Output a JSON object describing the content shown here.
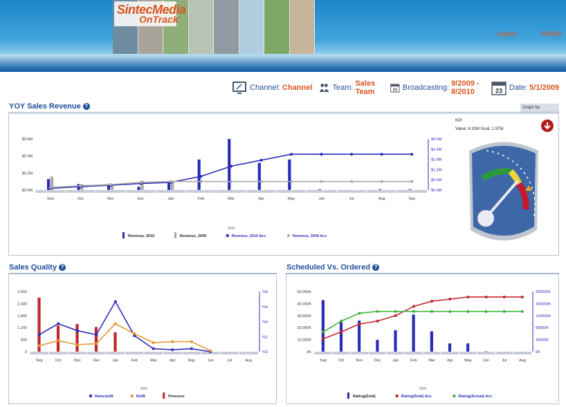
{
  "header": {
    "logo_line1": "SintecMedia",
    "logo_line2": "OnTrack",
    "logout_label": "Logout",
    "modify_label": "Modify"
  },
  "context": {
    "channel_label": "Channel:",
    "channel_value": "Channel",
    "team_label": "Team:",
    "team_value": "Sales Team",
    "broadcasting_label": "Broadcasting:",
    "broadcasting_value": "9/2009 - 8/2010",
    "date_label": "Date:",
    "date_value": "5/1/2009",
    "calendar_day": "23"
  },
  "yoy": {
    "title": "YOY Sales Revenue",
    "graph_by_label": "Graph by:",
    "kpi_label": "KPI",
    "kpi_value_text": "Value: 6.32M Goal: 1.97M"
  },
  "quality": {
    "title": "Sales Quality"
  },
  "scheduled": {
    "title": "Scheduled Vs. Ordered"
  },
  "colors": {
    "accent": "#d9541e",
    "navy": "#1f4f9a",
    "series_blue": "#2b2bb8",
    "series_gray": "#a8a8a8",
    "series_red": "#c0272d",
    "series_green": "#3fb23a",
    "series_orange": "#e0962f"
  },
  "chart_data": [
    {
      "type": "bar",
      "categories": [
        "Sep",
        "Oct",
        "Nov",
        "Dec",
        "Jan",
        "Feb",
        "Mar",
        "Apr",
        "May",
        "Jun",
        "Jul",
        "Aug",
        "Sep"
      ],
      "left_ticks": [
        "$0.6M",
        "$0.4M",
        "$0.2M",
        "$0.0M"
      ],
      "right_ticks": [
        "$3.0M",
        "$2.4M",
        "$1.8M",
        "$1.2M",
        "$0.6M",
        "$0.0M"
      ],
      "ylim_left": [
        0,
        0.6
      ],
      "ylim_right": [
        0,
        3.0
      ],
      "series": [
        {
          "name": "Revenue, 2010",
          "kind": "bar",
          "axis": "left",
          "values": [
            0.13,
            0.07,
            0.07,
            0.04,
            0.09,
            0.36,
            0.6,
            0.32,
            0.36,
            0.01,
            0.0,
            0.01,
            0.01
          ]
        },
        {
          "name": "Revenue, 2009",
          "kind": "bar",
          "axis": "left",
          "values": [
            0.16,
            0.07,
            0.07,
            0.11,
            0.09,
            0.0,
            0.0,
            0.0,
            0.0,
            0.0,
            0.0,
            0.0,
            0.0
          ]
        },
        {
          "name": "Revenue, 2010 Acc",
          "kind": "line",
          "axis": "right",
          "values": [
            0.1,
            0.2,
            0.28,
            0.38,
            0.45,
            0.8,
            1.4,
            1.75,
            2.1,
            2.1,
            2.1,
            2.1,
            2.1
          ]
        },
        {
          "name": "Revenue, 2009 Acc",
          "kind": "line",
          "axis": "right",
          "values": [
            0.15,
            0.25,
            0.32,
            0.45,
            0.5,
            0.5,
            0.5,
            0.5,
            0.5,
            0.5,
            0.5,
            0.5,
            0.5
          ]
        }
      ]
    },
    {
      "type": "line",
      "categories": [
        "Sep",
        "Oct",
        "Nov",
        "Dec",
        "Jan",
        "Feb",
        "Mar",
        "Apr",
        "May",
        "Jun",
        "Jul",
        "Aug"
      ],
      "left_ticks": [
        "3,000",
        "2,400",
        "1,800",
        "1,200",
        "600",
        "0"
      ],
      "right_ticks": [
        "%8",
        "%6",
        "%4",
        "%2",
        "%0"
      ],
      "ylim_left": [
        0,
        3000
      ],
      "ylim_right": [
        0,
        8
      ],
      "series": [
        {
          "name": "Ratecard$",
          "kind": "line",
          "axis": "left",
          "values": [
            850,
            1400,
            1050,
            850,
            2500,
            800,
            150,
            100,
            150,
            0,
            null,
            null
          ]
        },
        {
          "name": "Sell$",
          "kind": "line",
          "axis": "left",
          "values": [
            300,
            550,
            350,
            400,
            1400,
            900,
            450,
            500,
            500,
            50,
            null,
            null
          ]
        },
        {
          "name": "Pressure",
          "kind": "bar",
          "axis": "right",
          "values": [
            7.2,
            3.5,
            3.7,
            3.3,
            2.6,
            0,
            0,
            0,
            0,
            0,
            0,
            0
          ]
        }
      ]
    },
    {
      "type": "bar",
      "categories": [
        "Sep",
        "Oct",
        "Nov",
        "Dec",
        "Jan",
        "Feb",
        "Mar",
        "Apr",
        "May",
        "Jun",
        "Jul",
        "Aug"
      ],
      "left_ticks": [
        "50,000K",
        "40,000K",
        "30,000K",
        "20,000K",
        "10,000K",
        "0K"
      ],
      "right_ticks": [
        "200000K",
        "160000K",
        "120000K",
        "80000K",
        "40000K",
        "0K"
      ],
      "ylim_left": [
        0,
        50000
      ],
      "ylim_right": [
        0,
        200000
      ],
      "series": [
        {
          "name": "Rating(Sold)",
          "kind": "bar",
          "axis": "left",
          "values": [
            43000,
            25000,
            26000,
            10000,
            18000,
            31000,
            17000,
            7000,
            7000,
            500,
            0,
            0
          ]
        },
        {
          "name": "Rating(Sold) Acc",
          "kind": "line",
          "axis": "right",
          "values": [
            43000,
            66000,
            92000,
            102000,
            120000,
            151000,
            168000,
            175000,
            182000,
            182000,
            182000,
            182000
          ]
        },
        {
          "name": "Rating(Actual) Acc",
          "kind": "line",
          "axis": "right",
          "values": [
            66000,
            102000,
            128000,
            134000,
            134000,
            134000,
            134000,
            134000,
            134000,
            134000,
            134000,
            134000
          ]
        }
      ]
    }
  ]
}
